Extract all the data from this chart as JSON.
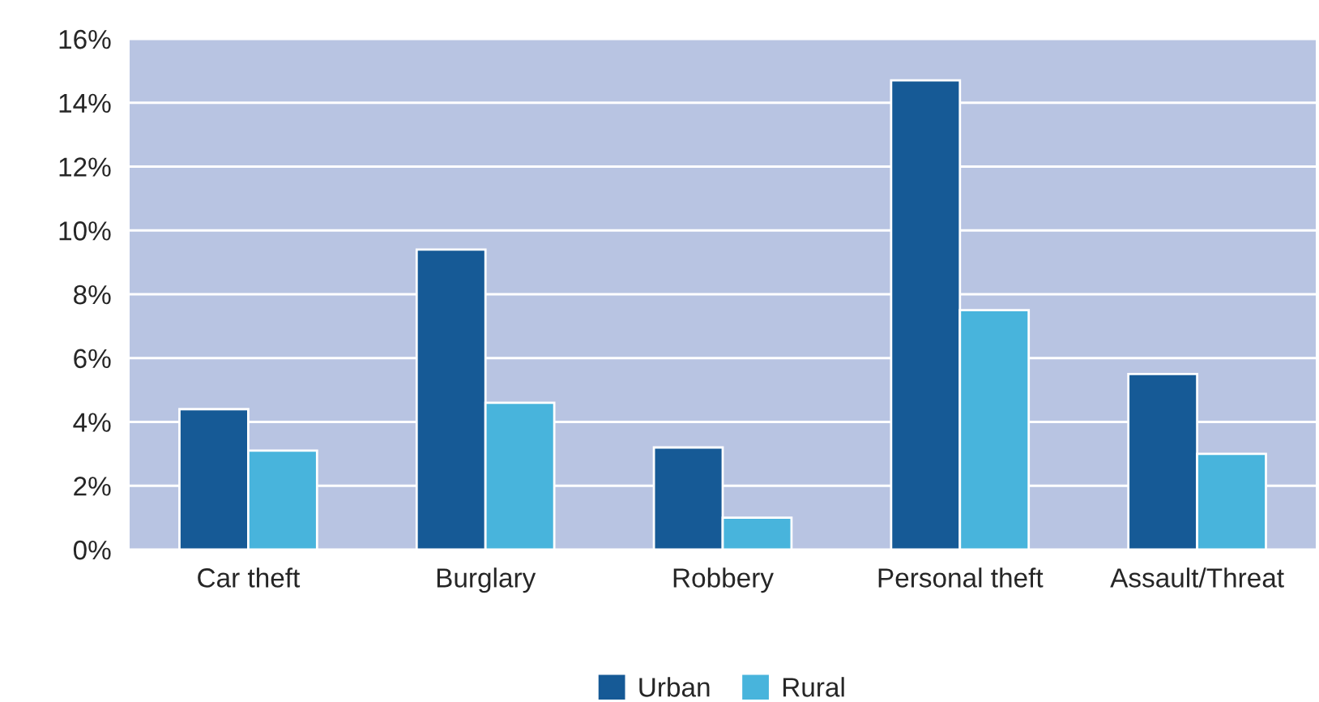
{
  "chart_data": {
    "type": "bar",
    "categories": [
      "Car theft",
      "Burglary",
      "Robbery",
      "Personal theft",
      "Assault/Threat"
    ],
    "series": [
      {
        "name": "Urban",
        "color": "#165a96",
        "values": [
          4.4,
          9.4,
          3.2,
          14.7,
          5.5
        ]
      },
      {
        "name": "Rural",
        "color": "#48b4dc",
        "values": [
          3.1,
          4.6,
          1.0,
          7.5,
          3.0
        ]
      }
    ],
    "ylim": [
      0,
      16
    ],
    "yticks": [
      {
        "value": 0,
        "label": "0%"
      },
      {
        "value": 2,
        "label": "2%"
      },
      {
        "value": 4,
        "label": "4%"
      },
      {
        "value": 6,
        "label": "6%"
      },
      {
        "value": 8,
        "label": "8%"
      },
      {
        "value": 10,
        "label": "10%"
      },
      {
        "value": 12,
        "label": "12%"
      },
      {
        "value": 14,
        "label": "14%"
      },
      {
        "value": 16,
        "label": "16%"
      }
    ],
    "grid": "y",
    "legend": "bottom"
  }
}
